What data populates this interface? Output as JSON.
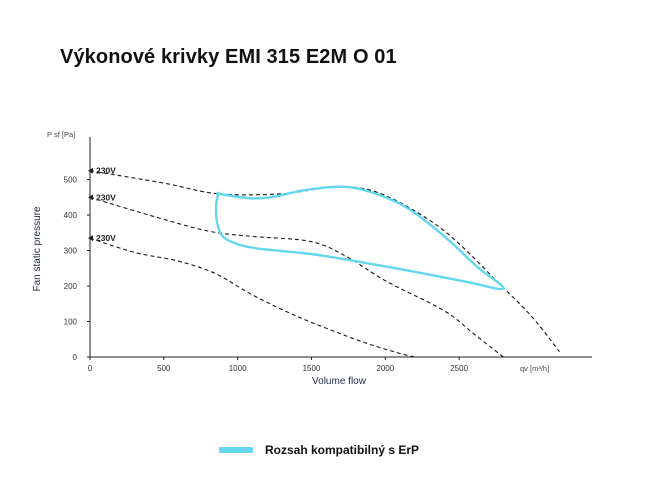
{
  "title": "Výkonové krivky EMI 315 E2M O 01",
  "colors": {
    "erp_band": "#62d7ed",
    "curve": "#1a1a1a",
    "axis": "#222222"
  },
  "legend": {
    "erp_label": "Rozsah kompatibilný s ErP"
  },
  "chart_data": {
    "type": "line",
    "title": "Výkonové krivky EMI 315 E2M O 01",
    "xlabel": "Volume flow",
    "ylabel": "Fan static pressure",
    "x_unit_label": "qv [m³/h]",
    "y_unit_label": "P sf [Pa]",
    "xlim": [
      0,
      3400
    ],
    "ylim": [
      0,
      620
    ],
    "x_ticks": [
      0,
      500,
      1000,
      1500,
      2000,
      2500
    ],
    "y_ticks": [
      0,
      100,
      200,
      300,
      400,
      500
    ],
    "grid": false,
    "series": [
      {
        "name": "230V",
        "style": "dashed",
        "x": [
          0,
          500,
          870,
          1300,
          1700,
          2000,
          2400,
          2800,
          3000,
          3180
        ],
        "y": [
          525,
          490,
          460,
          460,
          480,
          455,
          355,
          195,
          110,
          15
        ]
      },
      {
        "name": "230V",
        "style": "dashed",
        "x": [
          0,
          400,
          800,
          1100,
          1500,
          1750,
          2000,
          2400,
          2600,
          2800
        ],
        "y": [
          450,
          400,
          355,
          340,
          325,
          280,
          215,
          130,
          65,
          0
        ]
      },
      {
        "name": "230V",
        "style": "dashed",
        "x": [
          0,
          300,
          600,
          850,
          1100,
          1400,
          1700,
          1900,
          2100,
          2200
        ],
        "y": [
          335,
          295,
          270,
          235,
          175,
          115,
          65,
          35,
          10,
          0
        ]
      }
    ],
    "erp_region": {
      "x": [
        870,
        855,
        860,
        900,
        1000,
        1150,
        1500,
        1800,
        2200,
        2550,
        2800,
        2620,
        2400,
        2150,
        1900,
        1700,
        1450,
        1250,
        1100,
        960,
        870
      ],
      "y": [
        460,
        430,
        380,
        340,
        318,
        305,
        290,
        270,
        240,
        212,
        193,
        255,
        340,
        420,
        465,
        480,
        470,
        452,
        447,
        454,
        460
      ]
    },
    "legend_position": "bottom"
  }
}
